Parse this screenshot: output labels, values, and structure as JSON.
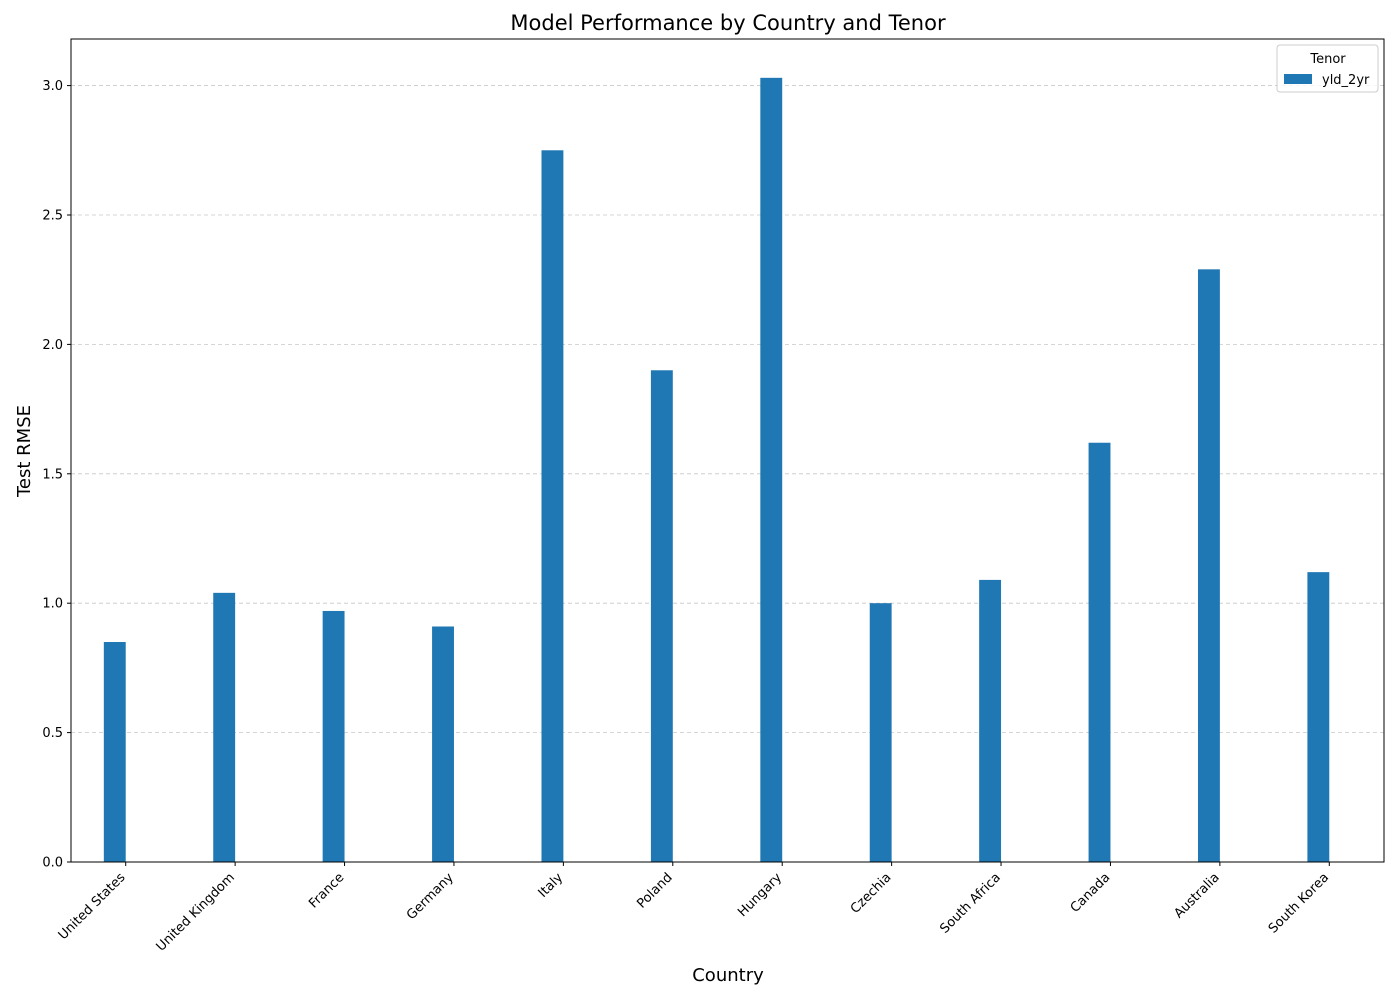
{
  "chart_data": {
    "type": "bar",
    "title": "Model Performance by Country and Tenor",
    "xlabel": "Country",
    "ylabel": "Test RMSE",
    "categories": [
      "United States",
      "United Kingdom",
      "France",
      "Germany",
      "Italy",
      "Poland",
      "Hungary",
      "Czechia",
      "South Africa",
      "Canada",
      "Australia",
      "South Korea"
    ],
    "series": [
      {
        "name": "yld_2yr",
        "color": "#1f77b4",
        "values": [
          0.85,
          1.04,
          0.97,
          0.91,
          2.75,
          1.9,
          3.03,
          1.0,
          1.09,
          1.62,
          2.29,
          1.12
        ]
      }
    ],
    "ylim": [
      0,
      3.18
    ],
    "yticks": [
      0.0,
      0.5,
      1.0,
      1.5,
      2.0,
      2.5,
      3.0
    ],
    "grid": "y-dashed",
    "legend": {
      "title": "Tenor",
      "placement": "top-right"
    }
  }
}
